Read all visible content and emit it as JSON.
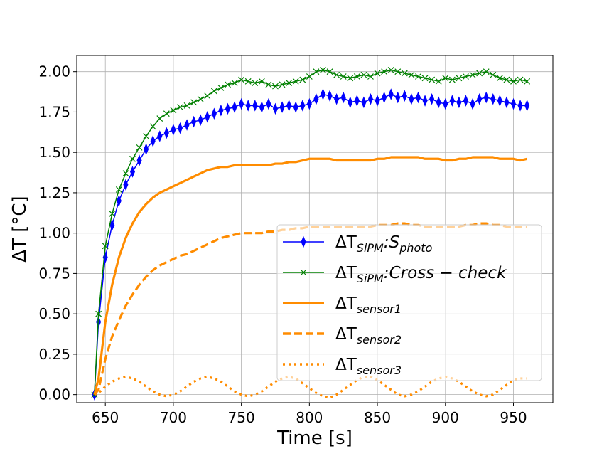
{
  "chart_data": {
    "type": "line",
    "xlabel": "Time [s]",
    "ylabel": "ΔT [°C]",
    "xlim": [
      629,
      979
    ],
    "ylim": [
      -0.05,
      2.1
    ],
    "xticks": [
      650,
      700,
      750,
      800,
      850,
      900,
      950
    ],
    "yticks": [
      {
        "value": 0,
        "label": "0.00"
      },
      {
        "value": 0.25,
        "label": "0.25"
      },
      {
        "value": 0.5,
        "label": "0.50"
      },
      {
        "value": 0.75,
        "label": "0.75"
      },
      {
        "value": 1,
        "label": "1.00"
      },
      {
        "value": 1.25,
        "label": "1.25"
      },
      {
        "value": 1.5,
        "label": "1.50"
      },
      {
        "value": 1.75,
        "label": "1.75"
      },
      {
        "value": 2,
        "label": "2.00"
      }
    ],
    "grid": true,
    "legend": "lower right",
    "x": [
      642,
      645,
      650,
      655,
      660,
      665,
      670,
      675,
      680,
      685,
      690,
      695,
      700,
      705,
      710,
      715,
      720,
      725,
      730,
      735,
      740,
      745,
      750,
      755,
      760,
      765,
      770,
      775,
      780,
      785,
      790,
      795,
      800,
      805,
      810,
      815,
      820,
      825,
      830,
      835,
      840,
      845,
      850,
      855,
      860,
      865,
      870,
      875,
      880,
      885,
      890,
      895,
      900,
      905,
      910,
      915,
      920,
      925,
      930,
      935,
      940,
      945,
      950,
      955,
      960
    ],
    "series": [
      {
        "name": [
          "ΔT",
          "SiPM",
          ":S",
          "photo"
        ],
        "color": "#0000ff",
        "linestyle": "solid",
        "marker": "d",
        "values": [
          0,
          0.45,
          0.85,
          1.05,
          1.2,
          1.3,
          1.38,
          1.45,
          1.52,
          1.57,
          1.6,
          1.62,
          1.64,
          1.65,
          1.67,
          1.69,
          1.7,
          1.72,
          1.74,
          1.76,
          1.77,
          1.78,
          1.8,
          1.79,
          1.79,
          1.78,
          1.8,
          1.77,
          1.78,
          1.79,
          1.78,
          1.79,
          1.8,
          1.83,
          1.86,
          1.85,
          1.83,
          1.84,
          1.81,
          1.82,
          1.81,
          1.83,
          1.82,
          1.84,
          1.86,
          1.84,
          1.85,
          1.83,
          1.84,
          1.82,
          1.83,
          1.81,
          1.8,
          1.82,
          1.81,
          1.82,
          1.8,
          1.83,
          1.84,
          1.83,
          1.82,
          1.81,
          1.8,
          1.79,
          1.79
        ]
      },
      {
        "name": [
          "ΔT",
          "SiPM",
          ":Cross − check"
        ],
        "color": "#008000",
        "linestyle": "solid",
        "marker": "x",
        "values": [
          0,
          0.5,
          0.92,
          1.12,
          1.27,
          1.37,
          1.46,
          1.53,
          1.6,
          1.66,
          1.71,
          1.74,
          1.76,
          1.78,
          1.79,
          1.81,
          1.83,
          1.85,
          1.88,
          1.9,
          1.92,
          1.93,
          1.95,
          1.94,
          1.93,
          1.94,
          1.92,
          1.91,
          1.92,
          1.93,
          1.94,
          1.95,
          1.97,
          2.0,
          2.01,
          2.0,
          1.98,
          1.97,
          1.96,
          1.97,
          1.98,
          1.97,
          1.99,
          2.0,
          2.01,
          2.0,
          1.99,
          1.98,
          1.97,
          1.96,
          1.95,
          1.94,
          1.96,
          1.95,
          1.96,
          1.97,
          1.98,
          1.99,
          2.0,
          1.98,
          1.96,
          1.95,
          1.94,
          1.95,
          1.94
        ]
      },
      {
        "name": [
          "ΔT",
          "sensor1"
        ],
        "color": "#ff8c00",
        "linestyle": "solid",
        "marker": null,
        "values": [
          0,
          0.1,
          0.45,
          0.68,
          0.85,
          0.97,
          1.06,
          1.13,
          1.18,
          1.22,
          1.25,
          1.27,
          1.29,
          1.31,
          1.33,
          1.35,
          1.37,
          1.39,
          1.4,
          1.41,
          1.41,
          1.42,
          1.42,
          1.42,
          1.42,
          1.42,
          1.42,
          1.43,
          1.43,
          1.44,
          1.44,
          1.45,
          1.46,
          1.46,
          1.46,
          1.46,
          1.45,
          1.45,
          1.45,
          1.45,
          1.45,
          1.45,
          1.46,
          1.46,
          1.47,
          1.47,
          1.47,
          1.47,
          1.47,
          1.46,
          1.46,
          1.46,
          1.45,
          1.45,
          1.46,
          1.46,
          1.47,
          1.47,
          1.47,
          1.47,
          1.46,
          1.46,
          1.46,
          1.45,
          1.46
        ]
      },
      {
        "name": [
          "ΔT",
          "sensor2"
        ],
        "color": "#ff8c00",
        "linestyle": "dashed",
        "marker": null,
        "values": [
          0,
          0.03,
          0.22,
          0.36,
          0.46,
          0.55,
          0.62,
          0.68,
          0.73,
          0.77,
          0.8,
          0.82,
          0.84,
          0.86,
          0.87,
          0.89,
          0.91,
          0.93,
          0.95,
          0.97,
          0.98,
          0.99,
          1.0,
          1.0,
          1.0,
          1.0,
          1.01,
          1.01,
          1.02,
          1.02,
          1.03,
          1.03,
          1.04,
          1.04,
          1.04,
          1.04,
          1.04,
          1.04,
          1.04,
          1.04,
          1.04,
          1.04,
          1.05,
          1.05,
          1.05,
          1.06,
          1.06,
          1.05,
          1.05,
          1.04,
          1.04,
          1.04,
          1.04,
          1.04,
          1.04,
          1.05,
          1.05,
          1.06,
          1.06,
          1.05,
          1.05,
          1.04,
          1.04,
          1.04,
          1.04
        ]
      },
      {
        "name": [
          "ΔT",
          "sensor3"
        ],
        "color": "#ff8c00",
        "linestyle": "dotted",
        "marker": null,
        "values": [
          0,
          0.01,
          0.05,
          0.08,
          0.1,
          0.11,
          0.1,
          0.08,
          0.05,
          0.02,
          0.0,
          -0.01,
          0.0,
          0.02,
          0.05,
          0.08,
          0.1,
          0.11,
          0.1,
          0.08,
          0.05,
          0.02,
          0.0,
          -0.01,
          0.0,
          0.02,
          0.05,
          0.08,
          0.1,
          0.11,
          0.1,
          0.07,
          0.04,
          0.01,
          -0.01,
          -0.02,
          0.0,
          0.03,
          0.06,
          0.09,
          0.11,
          0.11,
          0.09,
          0.06,
          0.03,
          0.0,
          -0.01,
          0.0,
          0.02,
          0.05,
          0.08,
          0.1,
          0.11,
          0.1,
          0.08,
          0.05,
          0.02,
          0.0,
          -0.01,
          0.0,
          0.03,
          0.06,
          0.09,
          0.1,
          0.1
        ]
      }
    ]
  }
}
